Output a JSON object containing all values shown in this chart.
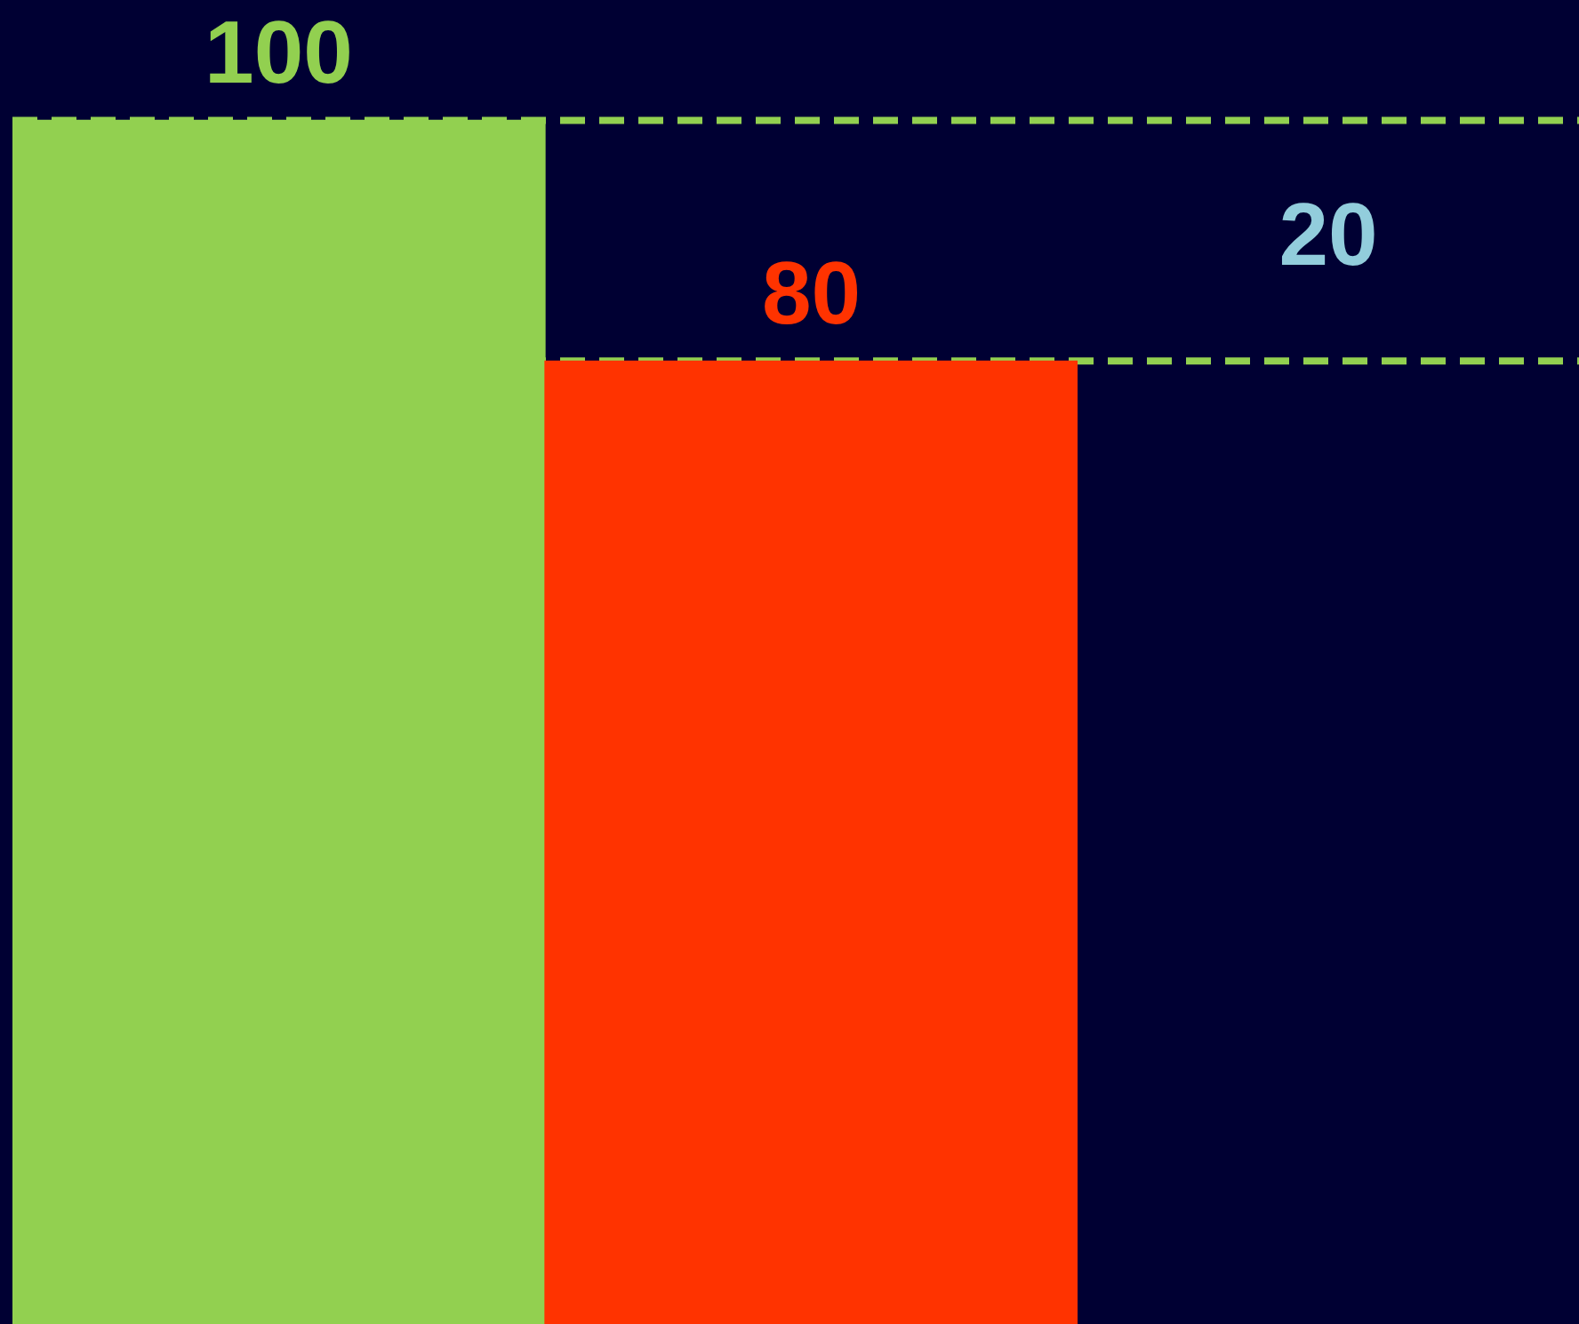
{
  "chart_data": {
    "type": "bar",
    "categories": [
      null,
      null
    ],
    "values": [
      100,
      80
    ],
    "colors": [
      "#92d050",
      "#ff3300"
    ],
    "ylim": [
      0,
      110
    ],
    "data_labels": true,
    "tick_labels": false,
    "ref_lines": [
      {
        "axis": "y",
        "value": 100,
        "color": "#92d050",
        "line_style": "dashed"
      },
      {
        "axis": "y",
        "value": 80,
        "color": "#92d050",
        "line_style": "dashed"
      }
    ],
    "annotations": [
      "20"
    ]
  }
}
